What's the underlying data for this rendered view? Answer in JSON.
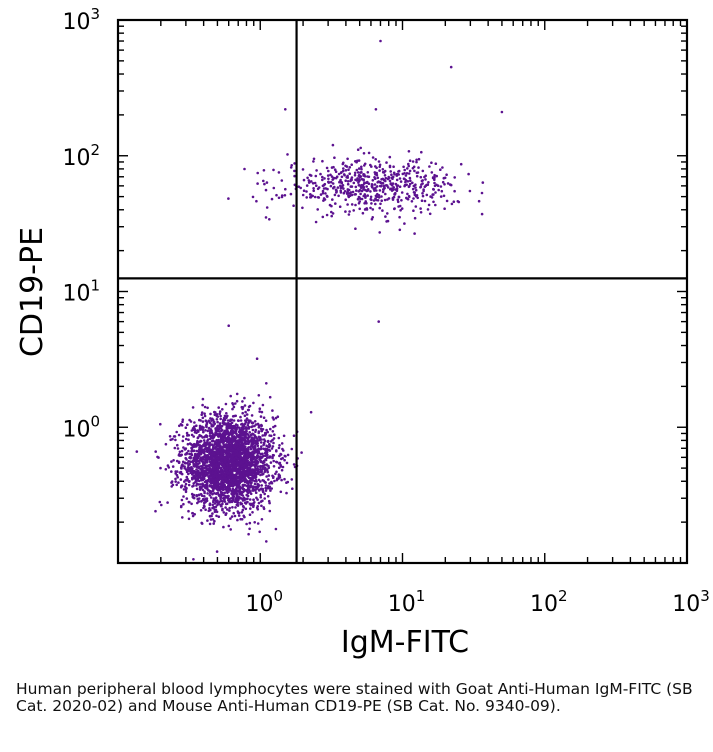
{
  "chart_data": {
    "type": "scatter",
    "xlabel": "IgM-FITC",
    "ylabel": "CD19-PE",
    "xscale": "log",
    "yscale": "log",
    "xlim": [
      0.1,
      1000
    ],
    "ylim": [
      0.1,
      1000
    ],
    "x_tick_labels": [
      {
        "value": 1,
        "base": "10",
        "exp": "0"
      },
      {
        "value": 10,
        "base": "10",
        "exp": "1"
      },
      {
        "value": 100,
        "base": "10",
        "exp": "2"
      },
      {
        "value": 1000,
        "base": "10",
        "exp": "3"
      }
    ],
    "y_tick_labels": [
      {
        "value": 1,
        "base": "10",
        "exp": "0"
      },
      {
        "value": 10,
        "base": "10",
        "exp": "1"
      },
      {
        "value": 100,
        "base": "10",
        "exp": "2"
      },
      {
        "value": 1000,
        "base": "10",
        "exp": "3"
      }
    ],
    "quadrant_gates": {
      "x": 1.8,
      "y": 12.5
    },
    "point_color": "#5c1290",
    "populations": [
      {
        "center": [
          0.6,
          0.55
        ],
        "spread_log10": [
          0.16,
          0.17
        ],
        "approx_count": 3000
      },
      {
        "center": [
          6.0,
          60
        ],
        "spread_log10": [
          0.3,
          0.1
        ],
        "approx_count": 600
      }
    ],
    "outliers": [
      [
        7,
        700
      ],
      [
        1.5,
        220
      ],
      [
        6.5,
        220
      ],
      [
        22,
        450
      ],
      [
        50,
        210
      ],
      [
        6.8,
        6
      ],
      [
        0.6,
        5.6
      ],
      [
        0.95,
        3.2
      ]
    ],
    "grid": false
  },
  "caption": "Human peripheral blood lymphocytes were stained with Goat Anti-Human IgM-FITC (SB Cat. 2020-02) and Mouse Anti-Human CD19-PE (SB Cat. No. 9340-09)."
}
